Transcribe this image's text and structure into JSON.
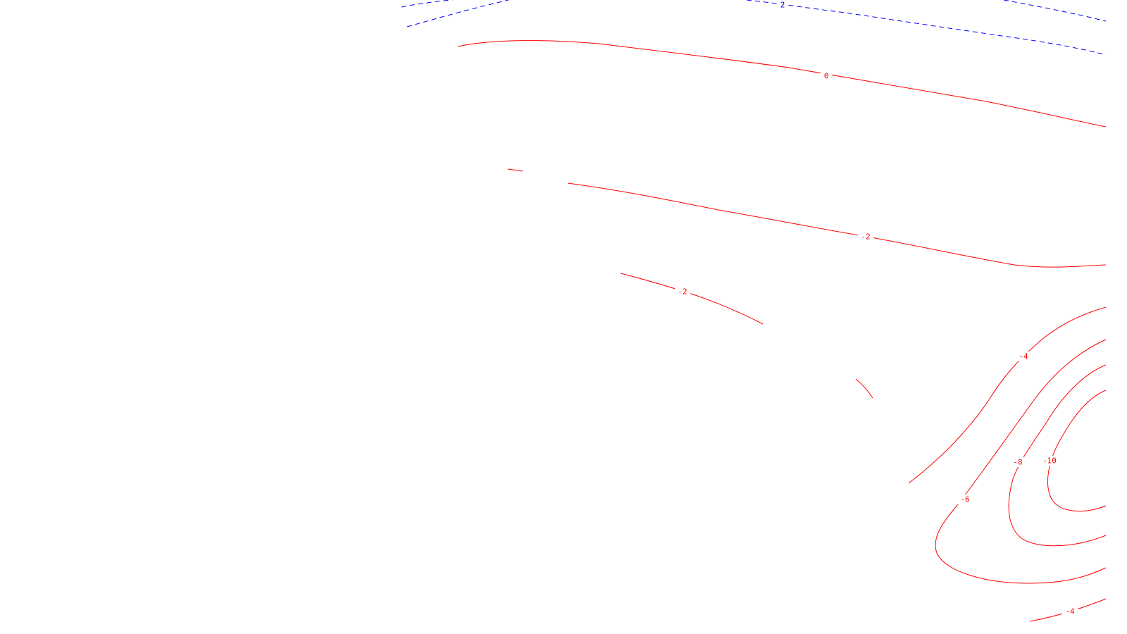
{
  "colors": {
    "background": "#ffffff",
    "negative_contour": "#ff0000",
    "positive_contour": "#0000ff"
  },
  "contours": {
    "line_styles": {
      "solid": "red contour lines",
      "dashed": "blue contour lines"
    },
    "labels": {
      "blue_top": "2",
      "zero_line": "0",
      "upper_minus2": "-2",
      "middle_minus2": "-2",
      "minus4_upper": "-4",
      "minus6": "-6",
      "minus8": "-8",
      "minus10": "-10",
      "minus4_lower": "-4"
    }
  }
}
